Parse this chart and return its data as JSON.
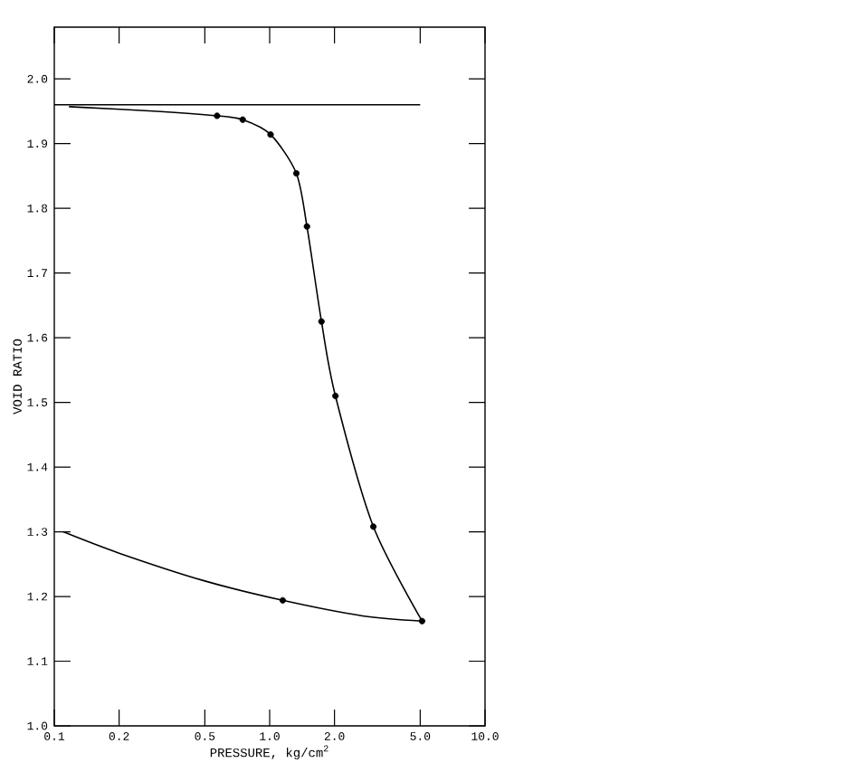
{
  "chart_data": {
    "type": "line",
    "xlabel": "PRESSURE, kg/cm$^{2}$",
    "ylabel": "VOID RATIO",
    "log": "x",
    "xlim": [
      0.1,
      10
    ],
    "ylim": [
      1.0,
      2.08
    ],
    "xticks": [
      {
        "value": 0.1,
        "label": "0.1"
      },
      {
        "value": 0.2,
        "label": "0.2"
      },
      {
        "value": 0.5,
        "label": "0.5"
      },
      {
        "value": 1,
        "label": "1.0"
      },
      {
        "value": 2,
        "label": "2.0"
      },
      {
        "value": 5,
        "label": "5.0"
      },
      {
        "value": 10,
        "label": "10.0"
      }
    ],
    "yticks": [
      {
        "value": 1.0,
        "label": "1.0"
      },
      {
        "value": 1.1,
        "label": "1.1"
      },
      {
        "value": 1.2,
        "label": "1.2"
      },
      {
        "value": 1.3,
        "label": "1.3"
      },
      {
        "value": 1.4,
        "label": "1.4"
      },
      {
        "value": 1.5,
        "label": "1.5"
      },
      {
        "value": 1.6,
        "label": "1.6"
      },
      {
        "value": 1.7,
        "label": "1.7"
      },
      {
        "value": 1.8,
        "label": "1.8"
      },
      {
        "value": 1.9,
        "label": "1.9"
      },
      {
        "value": 2.0,
        "label": "2.0"
      }
    ],
    "grid": false,
    "series": [
      {
        "color": "#000000",
        "marker": "none",
        "x": [
          0.1,
          5.0
        ],
        "values": [
          1.96,
          1.96
        ]
      },
      {
        "color": "#000000",
        "marker": "none",
        "x": [
          0.117,
          0.3,
          0.57,
          0.75,
          1.01,
          1.33,
          1.49,
          1.74,
          2.02,
          3.03,
          5.1
        ],
        "values": [
          1.957,
          1.95,
          1.943,
          1.937,
          1.914,
          1.854,
          1.772,
          1.625,
          1.51,
          1.308,
          1.162
        ]
      },
      {
        "color": "#000000",
        "marker": "none",
        "x": [
          0.11,
          0.2,
          0.5,
          1.15,
          2.7,
          5.1
        ],
        "values": [
          1.3,
          1.267,
          1.224,
          1.194,
          1.17,
          1.162
        ]
      },
      {
        "type": "scatter",
        "color": "#000000",
        "marker": "circle",
        "x": [
          0.57,
          0.75,
          1.01,
          1.33,
          1.49,
          1.74,
          2.02,
          3.03,
          5.1,
          1.15
        ],
        "values": [
          1.943,
          1.937,
          1.914,
          1.854,
          1.772,
          1.625,
          1.51,
          1.308,
          1.162,
          1.194
        ]
      }
    ]
  }
}
